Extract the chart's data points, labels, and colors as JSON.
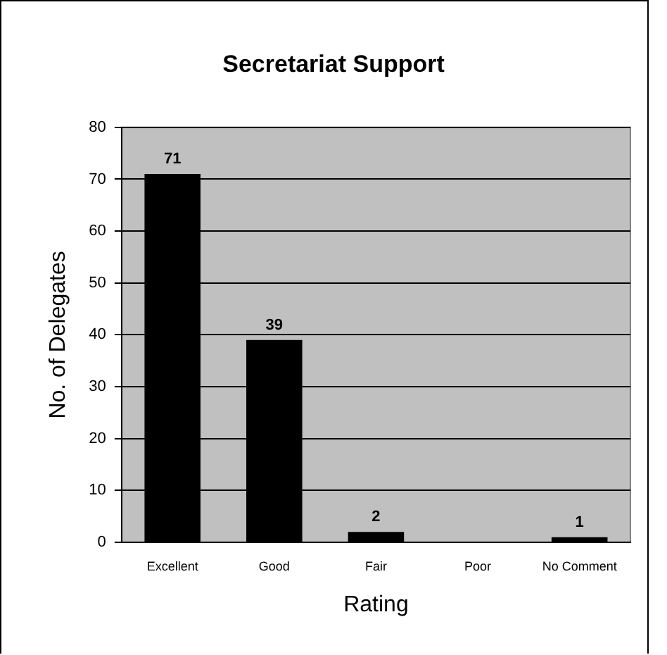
{
  "chart_data": {
    "type": "bar",
    "title": "Secretariat Support",
    "xlabel": "Rating",
    "ylabel": "No. of Delegates",
    "categories": [
      "Excellent",
      "Good",
      "Fair",
      "Poor",
      "No Comment"
    ],
    "values": [
      71,
      39,
      2,
      0,
      1
    ],
    "value_labels": [
      "71",
      "39",
      "2",
      null,
      "1"
    ],
    "color": "#000000",
    "ylim": [
      0,
      80
    ],
    "yticks": [
      0,
      10,
      20,
      30,
      40,
      50,
      60,
      70,
      80
    ],
    "grid": "y",
    "legend": false
  }
}
